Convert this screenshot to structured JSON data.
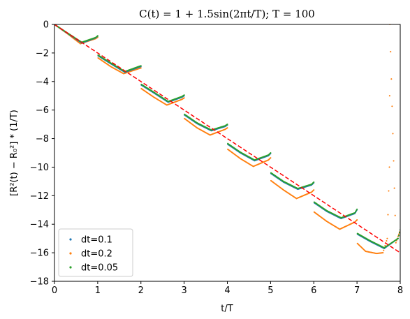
{
  "chart_data": {
    "type": "scatter",
    "title": "C(t) = 1 + 1.5sin(2πt/T); T = 100",
    "xlabel": "t/T",
    "ylabel": "[R²(t) − R₀²] * (1/T)",
    "xlim": [
      0,
      8
    ],
    "ylim": [
      -18,
      0
    ],
    "xticks": [
      0,
      1,
      2,
      3,
      4,
      5,
      6,
      7,
      8
    ],
    "yticks": [
      0,
      -2,
      -4,
      -6,
      -8,
      -10,
      -12,
      -14,
      -16,
      -18
    ],
    "grid": false,
    "legend_position": "lower-left",
    "series": [
      {
        "name": "dt=0.1",
        "color": "#1f77b4",
        "marker": "dot",
        "x": [
          0,
          0.3,
          0.63,
          0.95,
          1.0,
          1.01,
          1.3,
          1.63,
          1.95,
          2.0,
          2.01,
          2.3,
          2.63,
          2.95,
          3.0,
          3.01,
          3.3,
          3.63,
          3.95,
          4.0,
          4.01,
          4.3,
          4.63,
          4.95,
          5.0,
          5.01,
          5.3,
          5.63,
          5.95,
          6.0,
          6.01,
          6.3,
          6.63,
          6.95,
          7.0,
          7.01,
          7.3,
          7.63,
          7.95,
          8.0
        ],
        "y": [
          0,
          -0.62,
          -1.3,
          -0.95,
          -0.82,
          -2.2,
          -2.75,
          -3.35,
          -3.0,
          -2.95,
          -4.25,
          -4.8,
          -5.45,
          -5.1,
          -5.0,
          -6.35,
          -6.95,
          -7.45,
          -7.15,
          -7.05,
          -8.4,
          -9.0,
          -9.55,
          -9.2,
          -9.05,
          -10.45,
          -11.05,
          -11.55,
          -11.25,
          -11.1,
          -12.5,
          -13.1,
          -13.6,
          -13.25,
          -13.0,
          -14.7,
          -15.2,
          -15.7,
          -15.0,
          -14.4
        ]
      },
      {
        "name": "dt=0.2",
        "color": "#ff7f0e",
        "marker": "dot",
        "x": [
          0,
          0.3,
          0.6,
          0.95,
          1.0,
          1.01,
          1.3,
          1.6,
          1.95,
          2.0,
          2.01,
          2.3,
          2.6,
          2.95,
          3.0,
          3.01,
          3.3,
          3.6,
          3.95,
          4.0,
          4.01,
          4.3,
          4.6,
          4.95,
          5.0,
          5.01,
          5.3,
          5.6,
          5.95,
          6.0,
          6.01,
          6.3,
          6.6,
          6.95,
          7.0,
          7.01,
          7.2,
          7.45,
          7.6,
          7.7,
          7.75,
          7.755,
          7.76,
          7.9,
          8.0
        ],
        "y": [
          0,
          -0.65,
          -1.35,
          -1.0,
          -0.9,
          -2.35,
          -2.95,
          -3.45,
          -3.1,
          -3.05,
          -4.5,
          -5.1,
          -5.65,
          -5.25,
          -5.15,
          -6.6,
          -7.25,
          -7.75,
          -7.35,
          -7.25,
          -8.75,
          -9.4,
          -9.95,
          -9.5,
          -9.35,
          -10.95,
          -11.6,
          -12.2,
          -11.75,
          -11.6,
          -13.15,
          -13.8,
          -14.35,
          -13.85,
          -13.7,
          -15.35,
          -15.9,
          -16.05,
          -16.0,
          -15.0,
          -10.0,
          -5.0,
          0.0,
          -15.3,
          -14.4
        ]
      },
      {
        "name": "dt=0.05",
        "color": "#2ca02c",
        "marker": "dot",
        "x": [
          0,
          0.3,
          0.63,
          0.95,
          1.0,
          1.01,
          1.3,
          1.63,
          1.95,
          2.0,
          2.01,
          2.3,
          2.63,
          2.95,
          3.0,
          3.01,
          3.3,
          3.63,
          3.95,
          4.0,
          4.01,
          4.3,
          4.63,
          4.95,
          5.0,
          5.01,
          5.3,
          5.63,
          5.95,
          6.0,
          6.01,
          6.3,
          6.63,
          6.95,
          7.0,
          7.01,
          7.3,
          7.63,
          7.95,
          8.0
        ],
        "y": [
          0,
          -0.6,
          -1.25,
          -0.92,
          -0.8,
          -2.15,
          -2.7,
          -3.3,
          -2.95,
          -2.9,
          -4.2,
          -4.75,
          -5.4,
          -5.05,
          -4.95,
          -6.3,
          -6.9,
          -7.4,
          -7.1,
          -7.0,
          -8.35,
          -8.95,
          -9.5,
          -9.15,
          -9.0,
          -10.4,
          -11.0,
          -11.5,
          -11.2,
          -11.05,
          -12.45,
          -13.05,
          -13.55,
          -13.2,
          -12.95,
          -14.65,
          -15.15,
          -15.65,
          -15.0,
          -14.4
        ]
      }
    ],
    "reference_line": {
      "color": "#ff0000",
      "style": "dashed",
      "x": [
        0,
        8
      ],
      "y": [
        0,
        -16
      ]
    }
  }
}
